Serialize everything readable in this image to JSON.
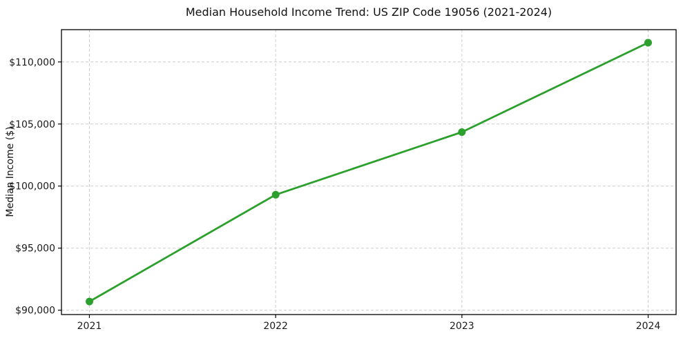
{
  "figure": {
    "background": "#ffffff"
  },
  "chart_data": {
    "type": "line",
    "title": "Median Household Income Trend: US ZIP Code 19056 (2021-2024)",
    "xlabel": "",
    "ylabel": "Median Income ($)",
    "series": [
      {
        "name": "Median Household Income",
        "x": [
          2021,
          2022,
          2023,
          2024
        ],
        "values": [
          90700,
          99300,
          104350,
          111550
        ]
      }
    ],
    "xtick_labels": [
      "2021",
      "2022",
      "2023",
      "2024"
    ],
    "xtick_values": [
      2021,
      2022,
      2023,
      2024
    ],
    "ytick_labels": [
      "$90,000",
      "$95,000",
      "$100,000",
      "$105,000",
      "$110,000"
    ],
    "ytick_values": [
      90000,
      95000,
      100000,
      105000,
      110000
    ],
    "xlim": [
      2020.85,
      2024.15
    ],
    "ylim": [
      89650,
      112600
    ],
    "grid": true,
    "grid_style": "dashed",
    "legend": false,
    "line_color": "#2ca02c",
    "marker_color": "#2ca02c",
    "grid_color": "#cccccc",
    "axis_color": "#000000",
    "tick_label_color": "#1a1a1a"
  }
}
